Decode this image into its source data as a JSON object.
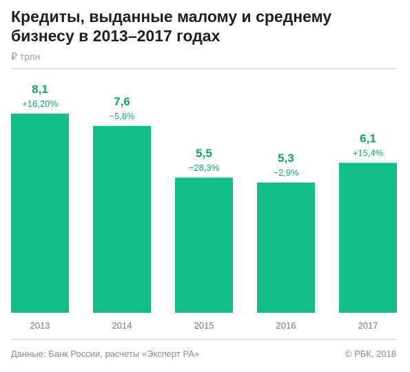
{
  "header": {
    "title": "Кредиты, выданные малому и среднему бизнесу в 2013–2017 годах",
    "unit": "₽ трлн"
  },
  "footer": {
    "source": "Данные: Банк России, расчеты «Эксперт РА»",
    "copyright": "© РБК, 2018"
  },
  "colors": {
    "bar": "#14bd87",
    "value_label": "#0f9e6e",
    "change_label": "#12a873",
    "tick_label": "#7a7a7a"
  },
  "chart_data": {
    "type": "bar",
    "title": "Кредиты, выданные малому и среднему бизнесу в 2013–2017 годах",
    "subtitle": "₽ трлн",
    "xlabel": "",
    "ylabel": "",
    "categories": [
      "2013",
      "2014",
      "2015",
      "2016",
      "2017"
    ],
    "values": [
      8.1,
      7.6,
      5.5,
      5.3,
      6.1
    ],
    "value_labels": [
      "8,1",
      "7,6",
      "5,5",
      "5,3",
      "6,1"
    ],
    "change_labels": [
      "+16,20%",
      "−5,6%",
      "−28,3%",
      "−2,9%",
      "+15,4%"
    ],
    "ylim": [
      0,
      8.1
    ],
    "grid": false,
    "legend": "none"
  }
}
